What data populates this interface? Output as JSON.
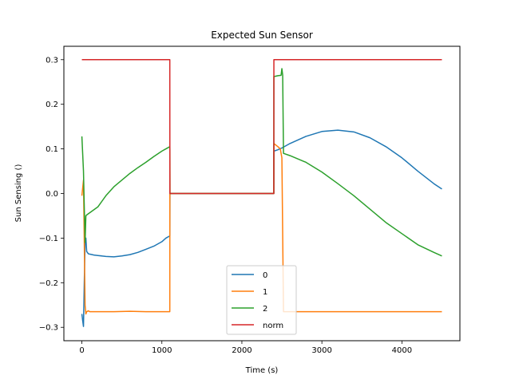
{
  "chart_data": {
    "type": "line",
    "title": "Expected Sun Sensor",
    "xlabel": "Time (s)",
    "ylabel": "Sun Sensing ()",
    "xlim": [
      -225,
      4725
    ],
    "ylim": [
      -0.33,
      0.33
    ],
    "xticks": [
      0,
      1000,
      2000,
      3000,
      4000
    ],
    "yticks": [
      -0.3,
      -0.2,
      -0.1,
      0.0,
      0.1,
      0.2,
      0.3
    ],
    "xtick_labels": [
      "0",
      "1000",
      "2000",
      "3000",
      "4000"
    ],
    "ytick_labels": [
      "−0.3",
      "−0.2",
      "−0.1",
      "0.0",
      "0.1",
      "0.2",
      "0.3"
    ],
    "grid": false,
    "legend_position": "lower-center",
    "series": [
      {
        "name": "0",
        "color": "#1f77b4",
        "x": [
          0,
          10,
          20,
          30,
          40,
          50,
          60,
          80,
          100,
          150,
          200,
          300,
          400,
          500,
          600,
          700,
          800,
          900,
          1000,
          1050,
          1100,
          1101,
          1200,
          1400,
          1600,
          1800,
          2000,
          2200,
          2399,
          2400,
          2450,
          2500,
          2600,
          2800,
          3000,
          3200,
          3400,
          3600,
          3800,
          4000,
          4200,
          4400,
          4500
        ],
        "y": [
          -0.27,
          -0.285,
          -0.298,
          -0.2,
          -0.11,
          -0.1,
          -0.13,
          -0.135,
          -0.136,
          -0.138,
          -0.139,
          -0.141,
          -0.142,
          -0.14,
          -0.137,
          -0.132,
          -0.125,
          -0.118,
          -0.108,
          -0.1,
          -0.095,
          0.0,
          0.0,
          0.0,
          0.0,
          0.0,
          0.0,
          0.0,
          0.0,
          0.095,
          0.098,
          0.102,
          0.112,
          0.128,
          0.139,
          0.142,
          0.138,
          0.125,
          0.105,
          0.08,
          0.05,
          0.022,
          0.01
        ]
      },
      {
        "name": "1",
        "color": "#ff7f0e",
        "x": [
          0,
          20,
          40,
          50,
          60,
          80,
          100,
          200,
          400,
          600,
          800,
          1000,
          1099,
          1100,
          1101,
          1200,
          1400,
          1600,
          1800,
          2000,
          2200,
          2399,
          2400,
          2450,
          2480,
          2500,
          2520,
          2600,
          3000,
          3500,
          4000,
          4500
        ],
        "y": [
          -0.005,
          0.03,
          -0.25,
          -0.27,
          -0.265,
          -0.263,
          -0.265,
          -0.265,
          -0.265,
          -0.264,
          -0.265,
          -0.265,
          -0.265,
          0.1,
          0.0,
          0.0,
          0.0,
          0.0,
          0.0,
          0.0,
          0.0,
          0.0,
          0.112,
          0.105,
          0.1,
          0.08,
          -0.265,
          -0.265,
          -0.265,
          -0.265,
          -0.265,
          -0.265
        ]
      },
      {
        "name": "2",
        "color": "#2ca02c",
        "x": [
          0,
          20,
          40,
          50,
          60,
          100,
          200,
          300,
          400,
          500,
          600,
          700,
          800,
          900,
          1000,
          1050,
          1100,
          1101,
          1200,
          1400,
          1600,
          1800,
          2000,
          2200,
          2399,
          2400,
          2450,
          2490,
          2500,
          2510,
          2520,
          2600,
          2800,
          3000,
          3200,
          3400,
          3600,
          3800,
          4000,
          4200,
          4400,
          4500
        ],
        "y": [
          0.128,
          0.05,
          -0.11,
          -0.05,
          -0.048,
          -0.043,
          -0.03,
          -0.005,
          0.015,
          0.03,
          0.045,
          0.058,
          0.07,
          0.083,
          0.095,
          0.1,
          0.105,
          0.0,
          0.0,
          0.0,
          0.0,
          0.0,
          0.0,
          0.0,
          0.0,
          0.262,
          0.264,
          0.265,
          0.28,
          0.265,
          0.09,
          0.085,
          0.07,
          0.048,
          0.022,
          -0.005,
          -0.035,
          -0.065,
          -0.09,
          -0.115,
          -0.132,
          -0.14
        ]
      },
      {
        "name": "norm",
        "color": "#d62728",
        "x": [
          0,
          1099,
          1100,
          2399,
          2400,
          4500
        ],
        "y": [
          0.3,
          0.3,
          0.0,
          0.0,
          0.3,
          0.3
        ]
      }
    ]
  }
}
